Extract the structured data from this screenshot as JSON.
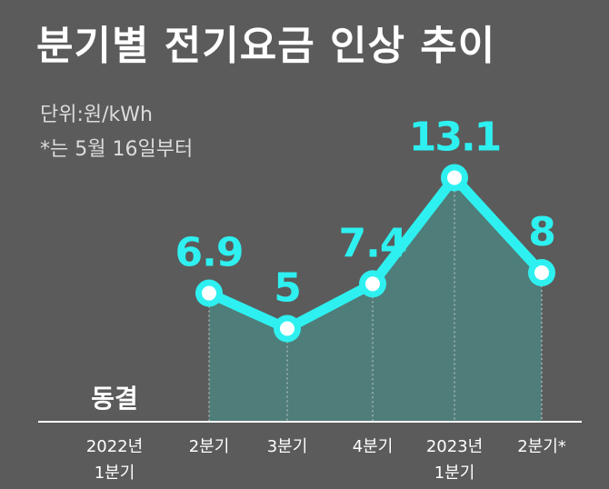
{
  "title": "분기별 전기요금 인상 추이",
  "unit_label": "단위:원/kWh",
  "note": "*는 5월 16일부터",
  "colors": {
    "background": "#5b5b5b",
    "accent": "#2ef0f0",
    "area_fill": "#4f7f7b",
    "axis": "#ffffff",
    "text": "#ffffff"
  },
  "chart_data": {
    "type": "line",
    "title": "분기별 전기요금 인상 추이",
    "ylabel": "단위:원/kWh",
    "categories": [
      {
        "line1": "2022년",
        "line2": "1분기"
      },
      {
        "line1": "2분기",
        "line2": ""
      },
      {
        "line1": "3분기",
        "line2": ""
      },
      {
        "line1": "4분기",
        "line2": ""
      },
      {
        "line1": "2023년",
        "line2": "1분기"
      },
      {
        "line1": "2분기*",
        "line2": ""
      }
    ],
    "series": [
      {
        "name": "전기요금 인상",
        "values": [
          0,
          6.9,
          5,
          7.4,
          13.1,
          8
        ],
        "data_labels": [
          "동결",
          "6.9",
          "5",
          "7.4",
          "13.1",
          "8"
        ]
      }
    ],
    "ylim": [
      0,
      15
    ]
  }
}
